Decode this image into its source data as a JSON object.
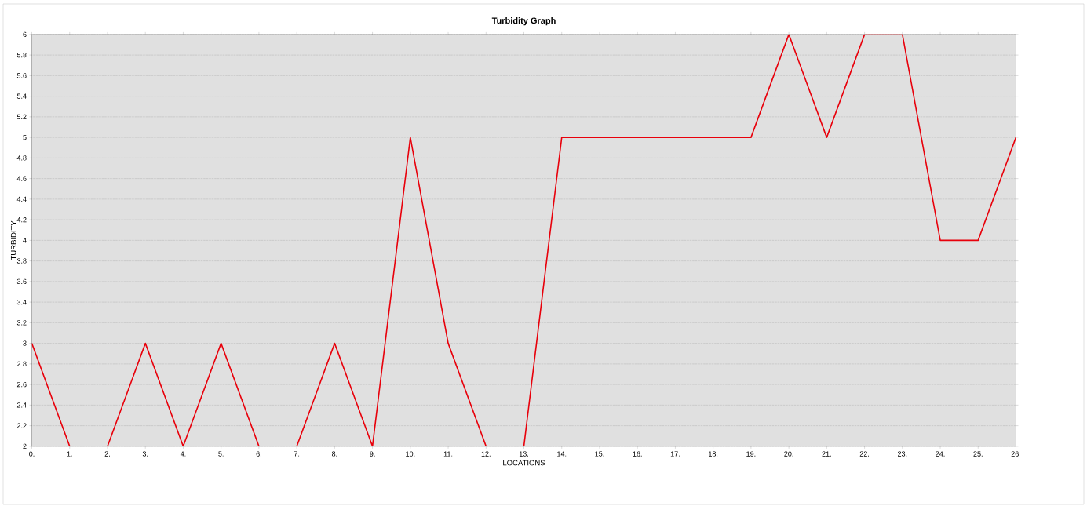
{
  "chart_data": {
    "type": "line",
    "title": "Turbidity Graph",
    "xlabel": "LOCATIONS",
    "ylabel": "TURBIDITY",
    "categories": [
      "0.",
      "1.",
      "2.",
      "3.",
      "4.",
      "5.",
      "6.",
      "7.",
      "8.",
      "9.",
      "10.",
      "11.",
      "12.",
      "13.",
      "14.",
      "15.",
      "16.",
      "17.",
      "18.",
      "19.",
      "20.",
      "21.",
      "22.",
      "23.",
      "24.",
      "25.",
      "26."
    ],
    "values": [
      3,
      2,
      2,
      3,
      2,
      3,
      2,
      2,
      3,
      2,
      5,
      3,
      2,
      2,
      5,
      5,
      5,
      5,
      5,
      5,
      6,
      5,
      6,
      6,
      4,
      4,
      5
    ],
    "color": "#e8000b",
    "ylim": [
      2,
      6
    ],
    "yticks": [
      2,
      2.2,
      2.4,
      2.6,
      2.8,
      3,
      3.2,
      3.4,
      3.6,
      3.8,
      4,
      4.2,
      4.4,
      4.6,
      4.8,
      5,
      5.2,
      5.4,
      5.6,
      5.8,
      6
    ],
    "grid": "y",
    "marker": "none",
    "line_style": "solid"
  }
}
